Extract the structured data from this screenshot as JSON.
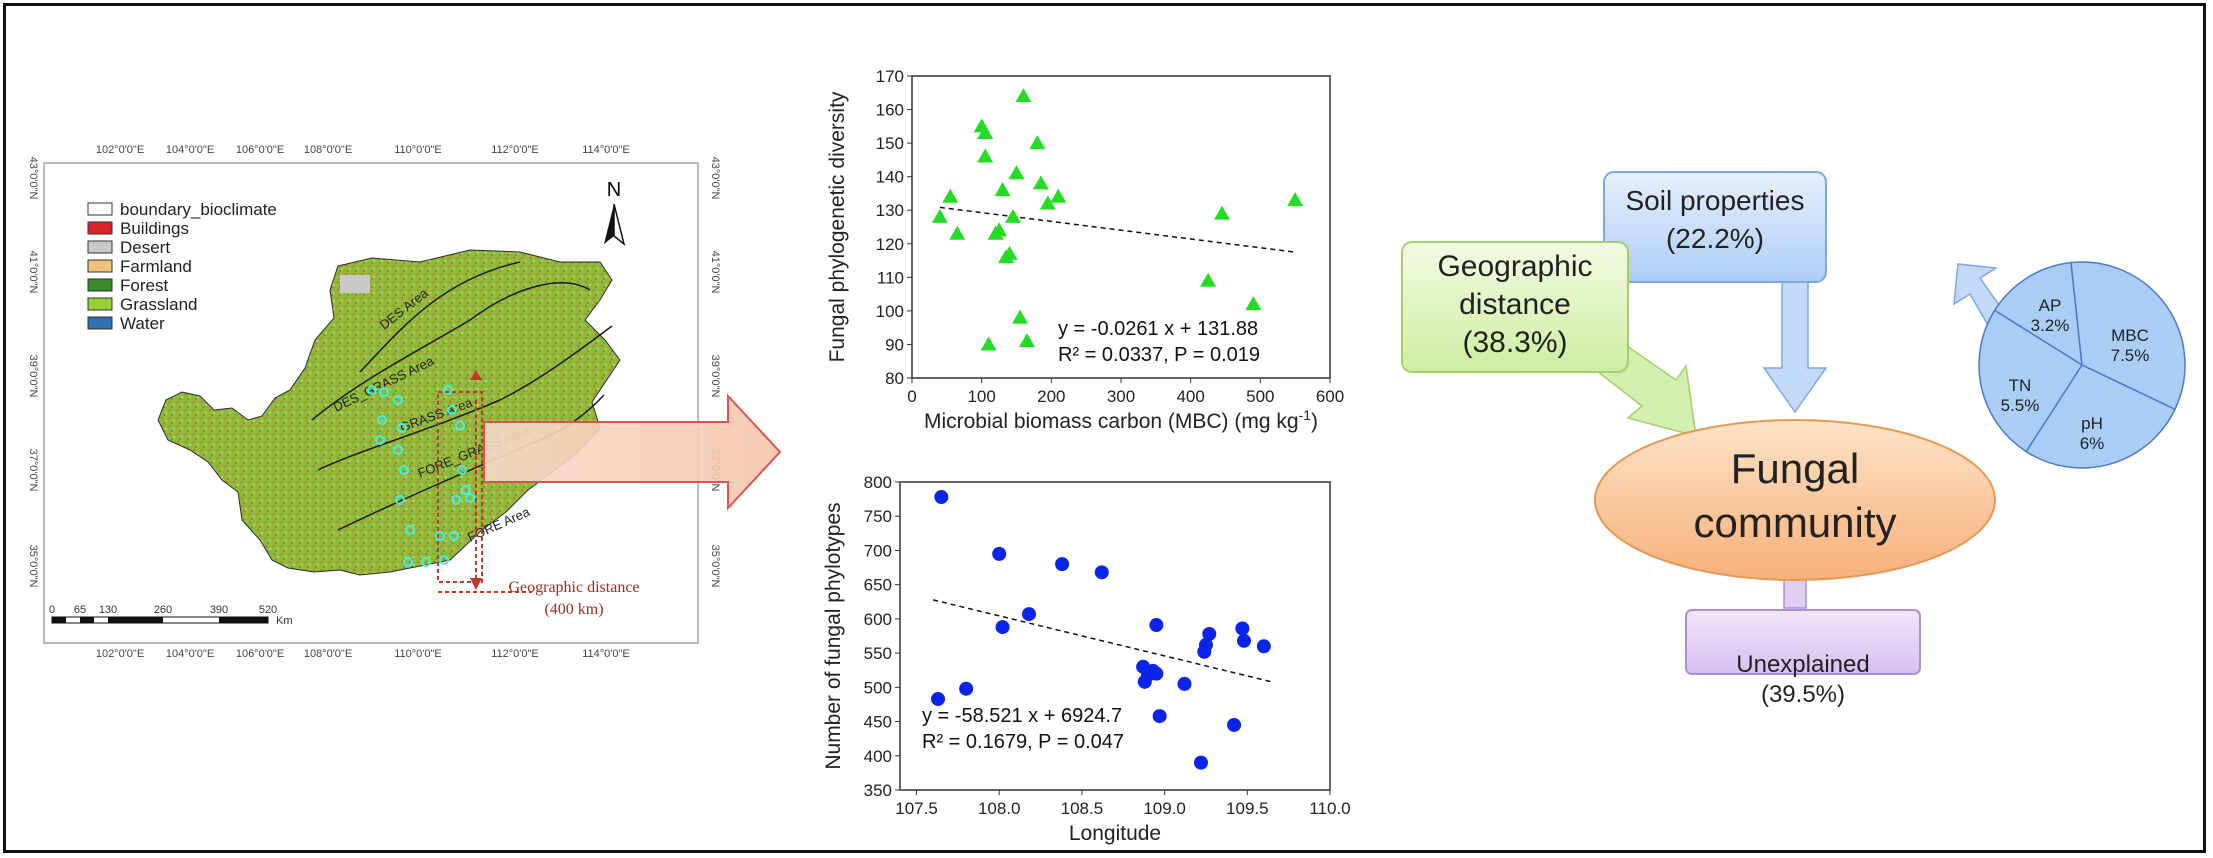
{
  "map": {
    "top_ticks": [
      "102°0'0\"E",
      "104°0'0\"E",
      "106°0'0\"E",
      "108°0'0\"E",
      "110°0'0\"E",
      "112°0'0\"E",
      "114°0'0\"E"
    ],
    "left_ticks": [
      "43°0'0\"N",
      "41°0'0\"N",
      "39°0'0\"N",
      "37°0'0\"N",
      "35°0'0\"N"
    ],
    "legend": [
      {
        "label": "boundary_bioclimate",
        "color": "#ffffff"
      },
      {
        "label": "Buildings",
        "color": "#d9232a"
      },
      {
        "label": "Desert",
        "color": "#c8c8c8"
      },
      {
        "label": "Farmland",
        "color": "#f2c27a"
      },
      {
        "label": "Forest",
        "color": "#3c8a2e"
      },
      {
        "label": "Grassland",
        "color": "#9acd32"
      },
      {
        "label": "Water",
        "color": "#2f6fb3"
      }
    ],
    "north_label": "N",
    "zone_labels": [
      "DES Area",
      "DES_GRASS Area",
      "GRASS Area",
      "FORE_GRASS Area",
      "FORE Area"
    ],
    "geo_distance_label": "Geographic distance",
    "geo_distance_value": "(400 km)",
    "scale_ticks": [
      "0",
      "65",
      "130",
      "260",
      "390",
      "520"
    ],
    "scale_unit": "Km"
  },
  "chart_data": [
    {
      "type": "scatter",
      "xlabel": "Microbial biomass carbon (MBC)  (mg kg",
      "xlabel_sup": "-1",
      "xlabel_end": ")",
      "ylabel": "Fungal phylogenetic diversity",
      "xlim": [
        0,
        600
      ],
      "ylim": [
        80,
        170
      ],
      "xticks": [
        "0",
        "100",
        "200",
        "300",
        "400",
        "500",
        "600"
      ],
      "yticks": [
        "80",
        "90",
        "100",
        "110",
        "120",
        "130",
        "140",
        "150",
        "160",
        "170"
      ],
      "marker": "triangle",
      "color": "#22dd22",
      "x": [
        40,
        55,
        65,
        100,
        105,
        105,
        110,
        120,
        125,
        130,
        135,
        140,
        145,
        150,
        160,
        165,
        155,
        180,
        185,
        195,
        210,
        425,
        445,
        490,
        550
      ],
      "y": [
        128,
        134,
        123,
        155,
        153,
        146,
        90,
        123,
        124,
        136,
        116,
        117,
        128,
        141,
        164,
        91,
        98,
        150,
        138,
        132,
        134,
        109,
        129,
        102,
        133
      ],
      "trend": {
        "slope": -0.0261,
        "intercept": 131.88
      },
      "equation": "y = -0.0261 x + 131.88",
      "stats": "R² = 0.0337,  P = 0.019"
    },
    {
      "type": "scatter",
      "xlabel": "Longitude",
      "ylabel": "Number of fungal phylotypes",
      "xlim": [
        107.4,
        110.0
      ],
      "ylim": [
        350,
        800
      ],
      "xticks": [
        "107.5",
        "108.0",
        "108.5",
        "109.0",
        "109.5",
        "110.0"
      ],
      "yticks": [
        "350",
        "400",
        "450",
        "500",
        "550",
        "600",
        "650",
        "700",
        "750",
        "800"
      ],
      "marker": "circle",
      "color": "#0a24e8",
      "x": [
        107.65,
        107.63,
        107.8,
        108.0,
        108.02,
        108.18,
        108.38,
        108.62,
        108.87,
        108.88,
        108.9,
        108.93,
        108.95,
        108.97,
        108.95,
        109.12,
        109.22,
        109.25,
        109.24,
        109.27,
        109.42,
        109.47,
        109.48,
        109.6
      ],
      "y": [
        778,
        483,
        498,
        695,
        588,
        607,
        680,
        668,
        530,
        508,
        518,
        524,
        591,
        458,
        520,
        505,
        390,
        562,
        552,
        578,
        445,
        586,
        568,
        560
      ],
      "trend": {
        "slope": -58.521,
        "intercept": 6924.7
      },
      "equation": "y = -58.521 x + 6924.7",
      "stats": "R² = 0.1679,  P = 0.047"
    },
    {
      "type": "pie",
      "labels": [
        "AP",
        "MBC",
        "pH",
        "TN"
      ],
      "values": [
        3.2,
        7.5,
        6,
        5.5
      ],
      "value_labels": [
        "3.2%",
        "7.5%",
        "6%",
        "5.5%"
      ],
      "color": "#aacdf5"
    }
  ],
  "diagram": {
    "geo": {
      "title": "Geographic",
      "title2": "distance",
      "value": "(38.3%)"
    },
    "soil": {
      "title": "Soil properties",
      "value": "(22.2%)"
    },
    "fungal": {
      "line1": "Fungal",
      "line2": "community"
    },
    "unexplained": {
      "title": "Unexplained",
      "value": "(39.5%)"
    }
  }
}
